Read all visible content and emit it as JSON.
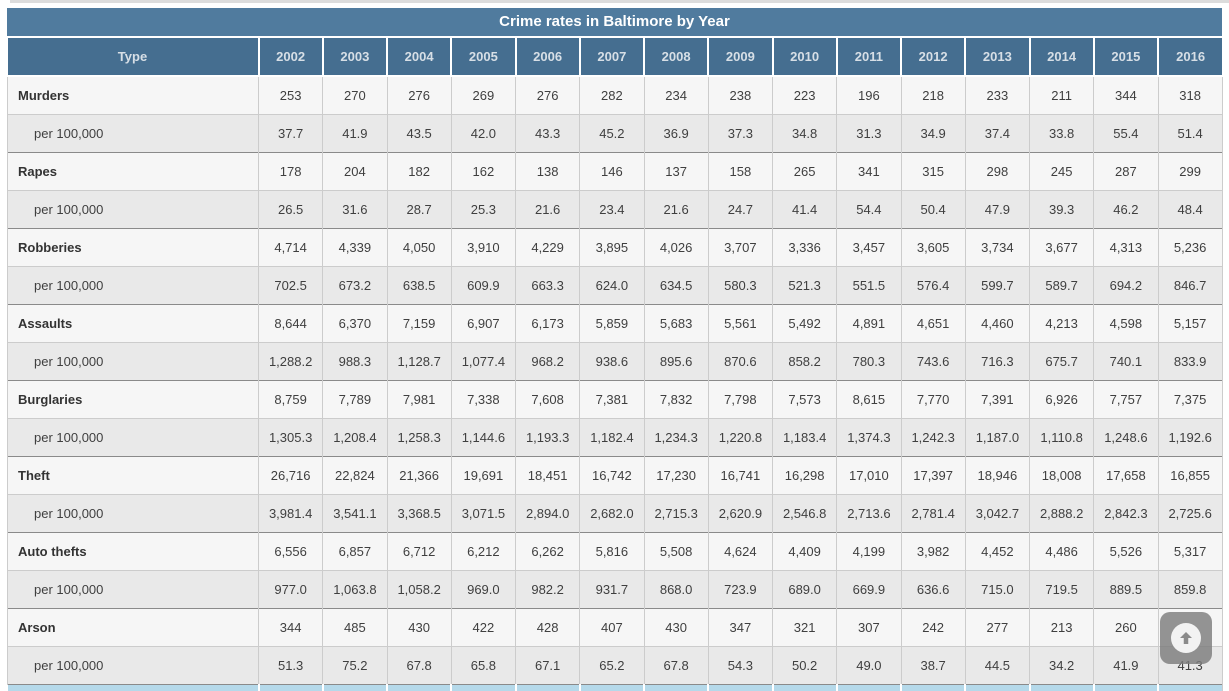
{
  "colors": {
    "title_bar_bg": "#507b9e",
    "header_bg": "#456e90",
    "header_text": "#d7dfe6",
    "count_row_bg": "#f6f6f6",
    "rate_row_bg": "#e9e9e9",
    "group_separator": "#8a8a8a",
    "cell_border": "#cccccc",
    "partial_bottom_row_bg": "#b5d9ea",
    "scroll_button_bg": "#7d7d7d"
  },
  "scroll_top_button": {
    "icon": "up-arrow-icon"
  },
  "chart_data": {
    "type": "table",
    "title": "Crime rates in Baltimore by Year",
    "type_column_header": "Type",
    "years": [
      "2002",
      "2003",
      "2004",
      "2005",
      "2006",
      "2007",
      "2008",
      "2009",
      "2010",
      "2011",
      "2012",
      "2013",
      "2014",
      "2015",
      "2016"
    ],
    "rows": [
      {
        "label": "Murders",
        "kind": "count",
        "values": [
          "253",
          "270",
          "276",
          "269",
          "276",
          "282",
          "234",
          "238",
          "223",
          "196",
          "218",
          "233",
          "211",
          "344",
          "318"
        ]
      },
      {
        "label": "per 100,000",
        "kind": "rate",
        "values": [
          "37.7",
          "41.9",
          "43.5",
          "42.0",
          "43.3",
          "45.2",
          "36.9",
          "37.3",
          "34.8",
          "31.3",
          "34.9",
          "37.4",
          "33.8",
          "55.4",
          "51.4"
        ]
      },
      {
        "label": "Rapes",
        "kind": "count",
        "values": [
          "178",
          "204",
          "182",
          "162",
          "138",
          "146",
          "137",
          "158",
          "265",
          "341",
          "315",
          "298",
          "245",
          "287",
          "299"
        ]
      },
      {
        "label": "per 100,000",
        "kind": "rate",
        "values": [
          "26.5",
          "31.6",
          "28.7",
          "25.3",
          "21.6",
          "23.4",
          "21.6",
          "24.7",
          "41.4",
          "54.4",
          "50.4",
          "47.9",
          "39.3",
          "46.2",
          "48.4"
        ]
      },
      {
        "label": "Robberies",
        "kind": "count",
        "values": [
          "4,714",
          "4,339",
          "4,050",
          "3,910",
          "4,229",
          "3,895",
          "4,026",
          "3,707",
          "3,336",
          "3,457",
          "3,605",
          "3,734",
          "3,677",
          "4,313",
          "5,236"
        ]
      },
      {
        "label": "per 100,000",
        "kind": "rate",
        "values": [
          "702.5",
          "673.2",
          "638.5",
          "609.9",
          "663.3",
          "624.0",
          "634.5",
          "580.3",
          "521.3",
          "551.5",
          "576.4",
          "599.7",
          "589.7",
          "694.2",
          "846.7"
        ]
      },
      {
        "label": "Assaults",
        "kind": "count",
        "values": [
          "8,644",
          "6,370",
          "7,159",
          "6,907",
          "6,173",
          "5,859",
          "5,683",
          "5,561",
          "5,492",
          "4,891",
          "4,651",
          "4,460",
          "4,213",
          "4,598",
          "5,157"
        ]
      },
      {
        "label": "per 100,000",
        "kind": "rate",
        "values": [
          "1,288.2",
          "988.3",
          "1,128.7",
          "1,077.4",
          "968.2",
          "938.6",
          "895.6",
          "870.6",
          "858.2",
          "780.3",
          "743.6",
          "716.3",
          "675.7",
          "740.1",
          "833.9"
        ]
      },
      {
        "label": "Burglaries",
        "kind": "count",
        "values": [
          "8,759",
          "7,789",
          "7,981",
          "7,338",
          "7,608",
          "7,381",
          "7,832",
          "7,798",
          "7,573",
          "8,615",
          "7,770",
          "7,391",
          "6,926",
          "7,757",
          "7,375"
        ]
      },
      {
        "label": "per 100,000",
        "kind": "rate",
        "values": [
          "1,305.3",
          "1,208.4",
          "1,258.3",
          "1,144.6",
          "1,193.3",
          "1,182.4",
          "1,234.3",
          "1,220.8",
          "1,183.4",
          "1,374.3",
          "1,242.3",
          "1,187.0",
          "1,110.8",
          "1,248.6",
          "1,192.6"
        ]
      },
      {
        "label": "Theft",
        "kind": "count",
        "values": [
          "26,716",
          "22,824",
          "21,366",
          "19,691",
          "18,451",
          "16,742",
          "17,230",
          "16,741",
          "16,298",
          "17,010",
          "17,397",
          "18,946",
          "18,008",
          "17,658",
          "16,855"
        ]
      },
      {
        "label": "per 100,000",
        "kind": "rate",
        "values": [
          "3,981.4",
          "3,541.1",
          "3,368.5",
          "3,071.5",
          "2,894.0",
          "2,682.0",
          "2,715.3",
          "2,620.9",
          "2,546.8",
          "2,713.6",
          "2,781.4",
          "3,042.7",
          "2,888.2",
          "2,842.3",
          "2,725.6"
        ]
      },
      {
        "label": "Auto thefts",
        "kind": "count",
        "values": [
          "6,556",
          "6,857",
          "6,712",
          "6,212",
          "6,262",
          "5,816",
          "5,508",
          "4,624",
          "4,409",
          "4,199",
          "3,982",
          "4,452",
          "4,486",
          "5,526",
          "5,317"
        ]
      },
      {
        "label": "per 100,000",
        "kind": "rate",
        "values": [
          "977.0",
          "1,063.8",
          "1,058.2",
          "969.0",
          "982.2",
          "931.7",
          "868.0",
          "723.9",
          "689.0",
          "669.9",
          "636.6",
          "715.0",
          "719.5",
          "889.5",
          "859.8"
        ]
      },
      {
        "label": "Arson",
        "kind": "count",
        "values": [
          "344",
          "485",
          "430",
          "422",
          "428",
          "407",
          "430",
          "347",
          "321",
          "307",
          "242",
          "277",
          "213",
          "260",
          ""
        ]
      },
      {
        "label": "per 100,000",
        "kind": "rate",
        "values": [
          "51.3",
          "75.2",
          "67.8",
          "65.8",
          "67.1",
          "65.2",
          "67.8",
          "54.3",
          "50.2",
          "49.0",
          "38.7",
          "44.5",
          "34.2",
          "41.9",
          "41.3"
        ]
      }
    ]
  }
}
